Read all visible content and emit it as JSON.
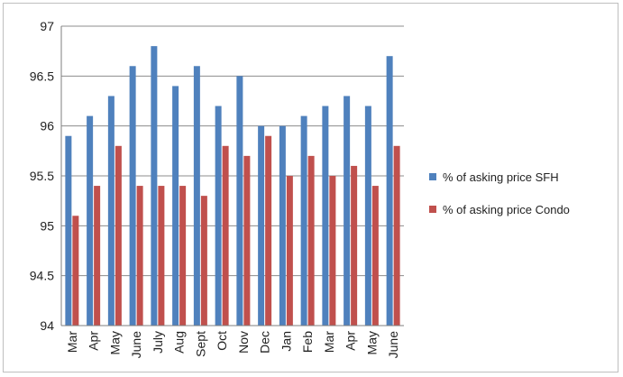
{
  "chart_data": {
    "type": "bar",
    "categories": [
      "Mar",
      "Apr",
      "May",
      "June",
      "July",
      "Aug",
      "Sept",
      "Oct",
      "Nov",
      "Dec",
      "Jan",
      "Feb",
      "Mar",
      "Apr",
      "May",
      "June"
    ],
    "series": [
      {
        "name": "% of asking price SFH",
        "color": "#4f81bd",
        "values": [
          95.9,
          96.1,
          96.3,
          96.6,
          96.8,
          96.4,
          96.6,
          96.2,
          96.5,
          96.0,
          96.0,
          96.1,
          96.2,
          96.3,
          96.2,
          96.7
        ]
      },
      {
        "name": "% of asking price Condo",
        "color": "#c0504d",
        "values": [
          95.1,
          95.4,
          95.8,
          95.4,
          95.4,
          95.4,
          95.3,
          95.8,
          95.7,
          95.9,
          95.5,
          95.7,
          95.5,
          95.6,
          95.4,
          95.8
        ]
      }
    ],
    "ylim": [
      94,
      97
    ],
    "yticks": [
      "94",
      "94.5",
      "95",
      "95.5",
      "96",
      "96.5",
      "97"
    ],
    "grid": true,
    "legend_position": "right",
    "title": "",
    "xlabel": "",
    "ylabel": ""
  }
}
